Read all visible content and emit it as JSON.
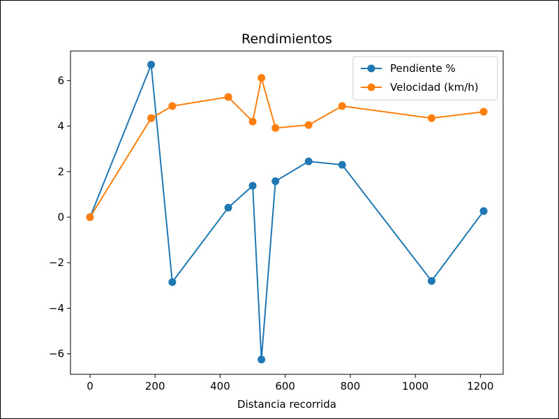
{
  "chart_data": {
    "type": "line",
    "title": "Rendimientos",
    "xlabel": "Distancia recorrida",
    "ylabel": "",
    "xlim": [
      -60,
      1270
    ],
    "ylim": [
      -6.9,
      7.3
    ],
    "xticks": [
      0,
      200,
      400,
      600,
      800,
      1000,
      1200
    ],
    "yticks": [
      -6,
      -4,
      -2,
      0,
      2,
      4,
      6
    ],
    "xtick_labels": [
      "0",
      "200",
      "400",
      "600",
      "800",
      "1000",
      "1200"
    ],
    "ytick_labels": [
      "−6",
      "−4",
      "−2",
      "0",
      "2",
      "4",
      "6"
    ],
    "grid": false,
    "legend_position": "top-right",
    "x": [
      0,
      188,
      253,
      425,
      500,
      527,
      570,
      672,
      775,
      1050,
      1210
    ],
    "series": [
      {
        "name": "Pendiente %",
        "color": "#1f77b4",
        "values": [
          0,
          6.7,
          -2.85,
          0.42,
          1.38,
          -6.25,
          1.58,
          2.45,
          2.3,
          -2.8,
          0.27
        ]
      },
      {
        "name": "Velocidad (km/h)",
        "color": "#ff7f0e",
        "values": [
          0,
          4.35,
          4.88,
          5.28,
          4.2,
          6.12,
          3.92,
          4.05,
          4.88,
          4.35,
          4.63
        ]
      }
    ]
  }
}
